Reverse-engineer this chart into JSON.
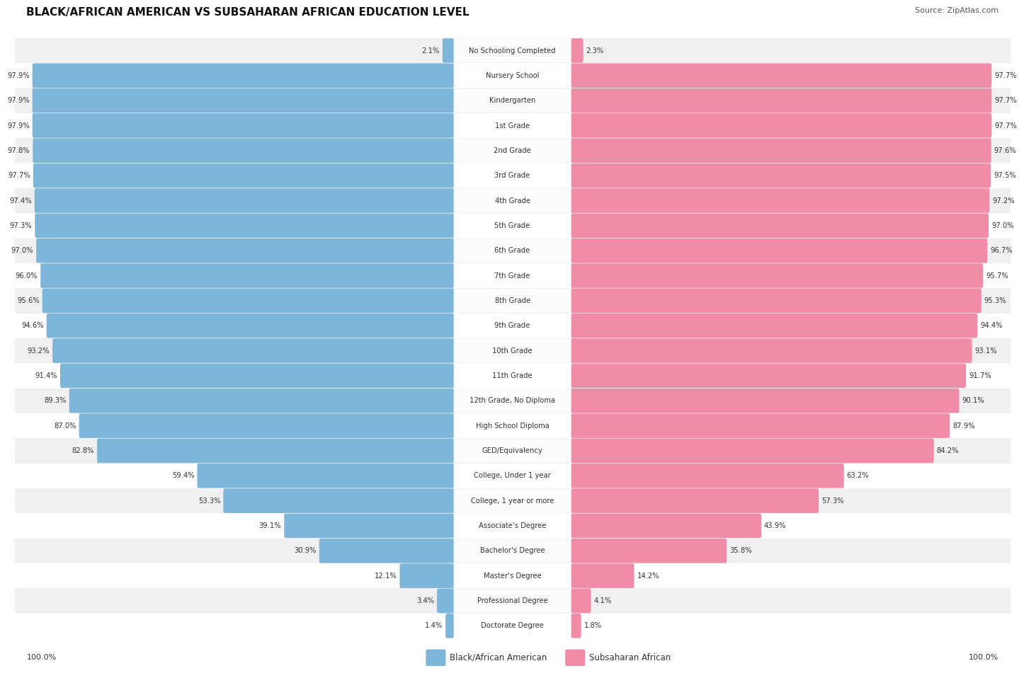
{
  "title": "BLACK/AFRICAN AMERICAN VS SUBSAHARAN AFRICAN EDUCATION LEVEL",
  "source": "Source: ZipAtlas.com",
  "categories": [
    "No Schooling Completed",
    "Nursery School",
    "Kindergarten",
    "1st Grade",
    "2nd Grade",
    "3rd Grade",
    "4th Grade",
    "5th Grade",
    "6th Grade",
    "7th Grade",
    "8th Grade",
    "9th Grade",
    "10th Grade",
    "11th Grade",
    "12th Grade, No Diploma",
    "High School Diploma",
    "GED/Equivalency",
    "College, Under 1 year",
    "College, 1 year or more",
    "Associate's Degree",
    "Bachelor's Degree",
    "Master's Degree",
    "Professional Degree",
    "Doctorate Degree"
  ],
  "black_values": [
    2.1,
    97.9,
    97.9,
    97.9,
    97.8,
    97.7,
    97.4,
    97.3,
    97.0,
    96.0,
    95.6,
    94.6,
    93.2,
    91.4,
    89.3,
    87.0,
    82.8,
    59.4,
    53.3,
    39.1,
    30.9,
    12.1,
    3.4,
    1.4
  ],
  "subsaharan_values": [
    2.3,
    97.7,
    97.7,
    97.7,
    97.6,
    97.5,
    97.2,
    97.0,
    96.7,
    95.7,
    95.3,
    94.4,
    93.1,
    91.7,
    90.1,
    87.9,
    84.2,
    63.2,
    57.3,
    43.9,
    35.8,
    14.2,
    4.1,
    1.8
  ],
  "blue_color": "#7EB6D9",
  "pink_color": "#F08CA8",
  "label_black": "Black/African American",
  "label_subsaharan": "Subsaharan African",
  "fig_bg": "#FFFFFF",
  "row_bg_even": "#F0F0F0",
  "row_bg_odd": "#FFFFFF"
}
